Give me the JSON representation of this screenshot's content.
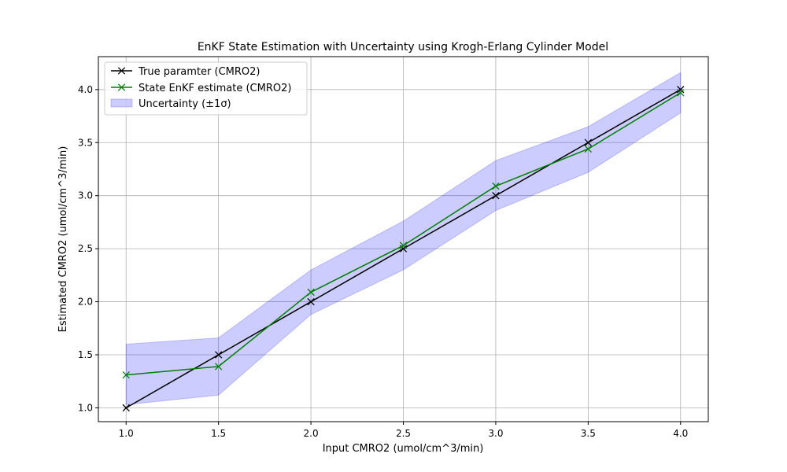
{
  "chart_data": {
    "type": "line",
    "title": "EnKF State Estimation with Uncertainty using Krogh-Erlang Cylinder Model",
    "xlabel": "Input CMRO2 (umol/cm^3/min)",
    "ylabel": "Estimated CMRO2 (umol/cm^3/min)",
    "x": [
      1.0,
      1.5,
      2.0,
      2.5,
      3.0,
      3.5,
      4.0
    ],
    "xlim": [
      0.85,
      4.15
    ],
    "ylim": [
      0.87,
      4.31
    ],
    "xticks": [
      "1.0",
      "1.5",
      "2.0",
      "2.5",
      "3.0",
      "3.5",
      "4.0"
    ],
    "xtick_values": [
      1.0,
      1.5,
      2.0,
      2.5,
      3.0,
      3.5,
      4.0
    ],
    "yticks": [
      "1.0",
      "1.5",
      "2.0",
      "2.5",
      "3.0",
      "3.5",
      "4.0"
    ],
    "ytick_values": [
      1.0,
      1.5,
      2.0,
      2.5,
      3.0,
      3.5,
      4.0
    ],
    "grid": true,
    "legend_position": "top-left",
    "series": [
      {
        "name": "True paramter (CMRO2)",
        "values": [
          1.0,
          1.5,
          2.0,
          2.5,
          3.0,
          3.5,
          4.0
        ],
        "color": "#000000",
        "marker": "x"
      },
      {
        "name": "State EnKF estimate (CMRO2)",
        "values": [
          1.31,
          1.39,
          2.09,
          2.53,
          3.09,
          3.44,
          3.97
        ],
        "color": "#008000",
        "marker": "x"
      }
    ],
    "band": {
      "name": "Uncertainty (±1σ)",
      "lower": [
        1.03,
        1.12,
        1.88,
        2.3,
        2.86,
        3.22,
        3.78
      ],
      "upper": [
        1.6,
        1.66,
        2.3,
        2.76,
        3.33,
        3.65,
        4.16
      ],
      "color": "#0000ff"
    }
  }
}
